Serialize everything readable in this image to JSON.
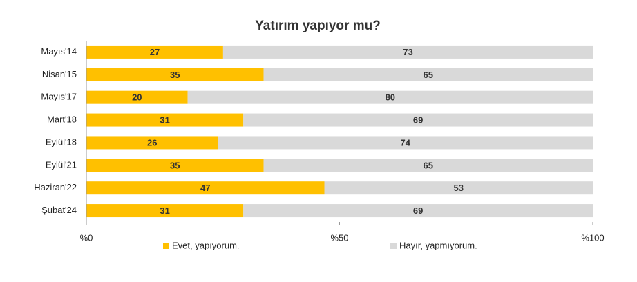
{
  "chart_data": {
    "type": "stacked-bar-horizontal",
    "title": "Yatırım yapıyor mu?",
    "categories": [
      "Mayıs'14",
      "Nisan'15",
      "Mayıs'17",
      "Mart'18",
      "Eylül'18",
      "Eylül'21",
      "Haziran'22",
      "Şubat'24"
    ],
    "series": [
      {
        "name": "Evet, yapıyorum.",
        "color": "#FFC000",
        "values": [
          27,
          35,
          20,
          31,
          26,
          35,
          47,
          31
        ]
      },
      {
        "name": "Hayır, yapmıyorum.",
        "color": "#D9D9D9",
        "values": [
          73,
          65,
          80,
          69,
          74,
          65,
          53,
          69
        ]
      }
    ],
    "xlim": [
      0,
      100
    ],
    "xticks": [
      {
        "value": 0,
        "label": "%0"
      },
      {
        "value": 50,
        "label": "%50"
      },
      {
        "value": 100,
        "label": "%100"
      }
    ]
  }
}
